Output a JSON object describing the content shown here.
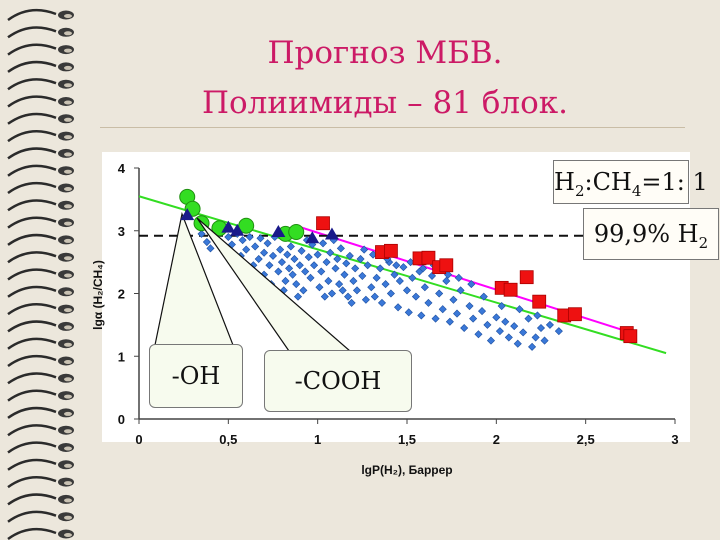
{
  "slide": {
    "title_line1": "Прогноз МБВ.",
    "title_line2": "Полиимиды – 81 блок."
  },
  "annotations": {
    "ratio": {
      "prefix": "H",
      "sub1": "2",
      "mid": ":CH",
      "sub2": "4",
      "suffix": "=1: 1"
    },
    "purity": {
      "text": "99,9% H",
      "sub": "2"
    },
    "oh_label": "-OH",
    "cooh_label": "-COOH"
  },
  "colors": {
    "diamond": "#3a78d8",
    "circle": "#33dd22",
    "triangle": "#1a1a8a",
    "square": "#ee1111",
    "green_line": "#33dd22",
    "magenta_line": "#ff00ff",
    "title": "#cc1a66"
  },
  "chart_data": {
    "type": "scatter",
    "xlabel": "lgP(H₂), Баррер",
    "ylabel": "lgα (H₂/CH₄)",
    "xlim": [
      0,
      3
    ],
    "ylim": [
      0,
      4
    ],
    "x_ticks": [
      "0",
      "0,5",
      "1",
      "1,5",
      "2",
      "2,5",
      "3"
    ],
    "y_ticks": [
      "0",
      "1",
      "2",
      "3",
      "4"
    ],
    "grid": false,
    "reference_line_y": 2.92,
    "lines": [
      {
        "color": "green",
        "x": [
          0,
          2.95
        ],
        "y": [
          3.55,
          1.05
        ]
      },
      {
        "color": "magenta",
        "x": [
          0.9,
          2.75
        ],
        "y": [
          3.06,
          1.38
        ]
      }
    ],
    "series": [
      {
        "marker": "circle",
        "points": [
          [
            0.27,
            3.54
          ],
          [
            0.3,
            3.35
          ],
          [
            0.35,
            3.12
          ],
          [
            0.45,
            3.04
          ],
          [
            0.6,
            3.08
          ],
          [
            0.82,
            2.95
          ],
          [
            0.88,
            2.98
          ]
        ]
      },
      {
        "marker": "triangle",
        "points": [
          [
            0.27,
            3.25
          ],
          [
            0.5,
            3.05
          ],
          [
            0.55,
            3.0
          ],
          [
            0.78,
            2.98
          ],
          [
            0.97,
            2.88
          ],
          [
            1.08,
            2.94
          ]
        ]
      },
      {
        "marker": "square",
        "points": [
          [
            1.03,
            3.12
          ],
          [
            1.36,
            2.66
          ],
          [
            1.41,
            2.68
          ],
          [
            1.57,
            2.56
          ],
          [
            1.62,
            2.57
          ],
          [
            1.68,
            2.42
          ],
          [
            1.72,
            2.45
          ],
          [
            2.03,
            2.09
          ],
          [
            2.08,
            2.06
          ],
          [
            2.17,
            2.26
          ],
          [
            2.24,
            1.87
          ],
          [
            2.38,
            1.65
          ],
          [
            2.44,
            1.67
          ],
          [
            2.73,
            1.37
          ],
          [
            2.75,
            1.32
          ]
        ]
      },
      {
        "marker": "diamond",
        "points": [
          [
            0.35,
            2.95
          ],
          [
            0.38,
            2.82
          ],
          [
            0.42,
            2.88
          ],
          [
            0.45,
            2.97
          ],
          [
            0.5,
            2.9
          ],
          [
            0.52,
            2.78
          ],
          [
            0.55,
            2.95
          ],
          [
            0.58,
            2.85
          ],
          [
            0.6,
            2.7
          ],
          [
            0.62,
            2.9
          ],
          [
            0.65,
            2.75
          ],
          [
            0.67,
            2.55
          ],
          [
            0.68,
            2.88
          ],
          [
            0.7,
            2.65
          ],
          [
            0.72,
            2.8
          ],
          [
            0.73,
            2.45
          ],
          [
            0.75,
            2.6
          ],
          [
            0.76,
            2.9
          ],
          [
            0.78,
            2.35
          ],
          [
            0.79,
            2.7
          ],
          [
            0.8,
            2.5
          ],
          [
            0.82,
            2.2
          ],
          [
            0.83,
            2.62
          ],
          [
            0.84,
            2.4
          ],
          [
            0.85,
            2.75
          ],
          [
            0.86,
            2.3
          ],
          [
            0.87,
            2.55
          ],
          [
            0.88,
            2.15
          ],
          [
            0.9,
            2.45
          ],
          [
            0.91,
            2.68
          ],
          [
            0.92,
            2.05
          ],
          [
            0.93,
            2.35
          ],
          [
            0.95,
            2.58
          ],
          [
            0.96,
            2.25
          ],
          [
            0.97,
            2.78
          ],
          [
            0.98,
            2.45
          ],
          [
            1.0,
            2.62
          ],
          [
            1.01,
            2.1
          ],
          [
            1.02,
            2.35
          ],
          [
            1.03,
            2.8
          ],
          [
            1.05,
            2.5
          ],
          [
            1.06,
            2.2
          ],
          [
            1.07,
            2.65
          ],
          [
            1.08,
            2.0
          ],
          [
            1.1,
            2.4
          ],
          [
            1.11,
            2.55
          ],
          [
            1.12,
            2.15
          ],
          [
            1.13,
            2.72
          ],
          [
            1.15,
            2.3
          ],
          [
            1.16,
            2.48
          ],
          [
            1.17,
            1.95
          ],
          [
            1.18,
            2.6
          ],
          [
            1.2,
            2.2
          ],
          [
            1.21,
            2.4
          ],
          [
            1.22,
            2.05
          ],
          [
            1.24,
            2.55
          ],
          [
            1.25,
            2.28
          ],
          [
            1.27,
            1.9
          ],
          [
            1.28,
            2.45
          ],
          [
            1.3,
            2.1
          ],
          [
            1.31,
            2.62
          ],
          [
            1.33,
            2.25
          ],
          [
            1.35,
            2.4
          ],
          [
            1.36,
            1.85
          ],
          [
            1.38,
            2.15
          ],
          [
            1.4,
            2.5
          ],
          [
            1.41,
            2.0
          ],
          [
            1.43,
            2.3
          ],
          [
            1.45,
            1.78
          ],
          [
            1.46,
            2.2
          ],
          [
            1.48,
            2.42
          ],
          [
            1.5,
            2.05
          ],
          [
            1.51,
            1.7
          ],
          [
            1.53,
            2.25
          ],
          [
            1.55,
            1.95
          ],
          [
            1.57,
            2.35
          ],
          [
            1.58,
            1.65
          ],
          [
            1.6,
            2.1
          ],
          [
            1.62,
            1.85
          ],
          [
            1.64,
            2.28
          ],
          [
            1.66,
            1.6
          ],
          [
            1.68,
            2.0
          ],
          [
            1.7,
            1.75
          ],
          [
            1.72,
            2.2
          ],
          [
            1.74,
            1.55
          ],
          [
            1.76,
            1.9
          ],
          [
            1.78,
            1.68
          ],
          [
            1.8,
            2.05
          ],
          [
            1.82,
            1.45
          ],
          [
            1.85,
            1.8
          ],
          [
            1.87,
            1.6
          ],
          [
            1.9,
            1.35
          ],
          [
            1.92,
            1.72
          ],
          [
            1.95,
            1.5
          ],
          [
            1.97,
            1.25
          ],
          [
            2.0,
            1.62
          ],
          [
            2.02,
            1.4
          ],
          [
            2.05,
            1.55
          ],
          [
            2.07,
            1.3
          ],
          [
            2.1,
            1.48
          ],
          [
            2.12,
            1.2
          ],
          [
            2.15,
            1.38
          ],
          [
            2.18,
            1.6
          ],
          [
            2.2,
            1.15
          ],
          [
            2.22,
            1.3
          ],
          [
            2.25,
            1.45
          ],
          [
            2.27,
            1.25
          ],
          [
            0.4,
            2.72
          ],
          [
            0.57,
            2.6
          ],
          [
            0.64,
            2.45
          ],
          [
            0.7,
            2.3
          ],
          [
            0.74,
            2.15
          ],
          [
            0.81,
            2.05
          ],
          [
            0.89,
            1.95
          ],
          [
            0.94,
            2.85
          ],
          [
            1.04,
            1.95
          ],
          [
            1.09,
            2.85
          ],
          [
            1.14,
            2.05
          ],
          [
            1.19,
            1.85
          ],
          [
            1.26,
            2.7
          ],
          [
            1.32,
            1.95
          ],
          [
            1.39,
            2.55
          ],
          [
            1.44,
            2.45
          ],
          [
            1.52,
            2.5
          ],
          [
            1.59,
            2.4
          ],
          [
            1.65,
            2.45
          ],
          [
            1.73,
            2.3
          ],
          [
            1.79,
            2.25
          ],
          [
            1.86,
            2.15
          ],
          [
            1.93,
            1.95
          ],
          [
            2.03,
            1.8
          ],
          [
            2.13,
            1.75
          ],
          [
            2.23,
            1.65
          ],
          [
            2.3,
            1.5
          ],
          [
            2.35,
            1.4
          ]
        ]
      }
    ]
  }
}
